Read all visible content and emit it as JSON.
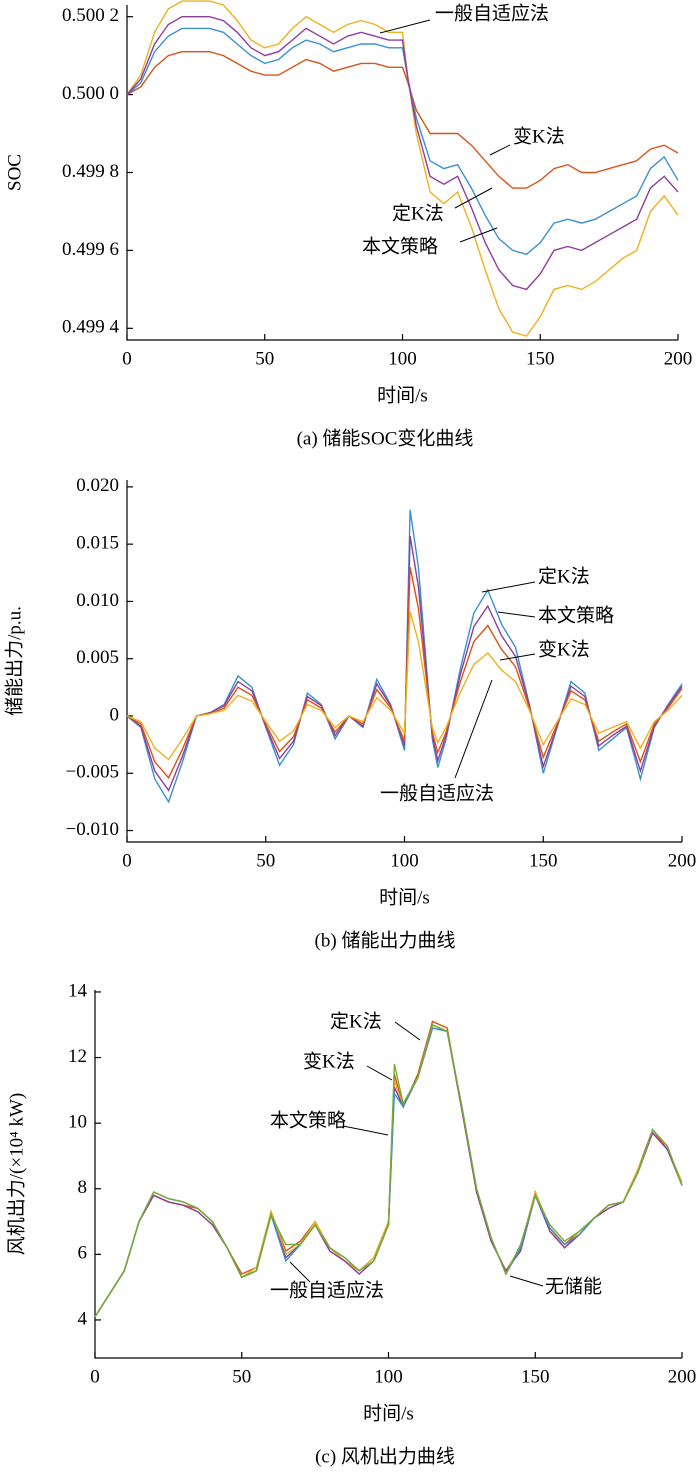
{
  "chart_data": [
    {
      "type": "line",
      "caption": "(a) 储能SOC变化曲线",
      "x_label": "时间/s",
      "y_label": "SOC",
      "x": [
        0,
        5,
        10,
        15,
        20,
        25,
        30,
        35,
        40,
        45,
        50,
        55,
        60,
        65,
        70,
        75,
        80,
        85,
        90,
        95,
        100,
        102,
        105,
        110,
        115,
        120,
        125,
        130,
        135,
        140,
        145,
        150,
        155,
        160,
        165,
        170,
        175,
        180,
        185,
        190,
        195,
        200
      ],
      "xlim": [
        0,
        200
      ],
      "xticks": [
        0,
        50,
        100,
        150,
        200
      ],
      "ylim": [
        0.49937,
        0.50023
      ],
      "yticks": [
        {
          "value": 0.4994,
          "label": "0.499 4"
        },
        {
          "value": 0.4996,
          "label": "0.499 6"
        },
        {
          "value": 0.4998,
          "label": "0.499 8"
        },
        {
          "value": 0.5,
          "label": "0.500 0"
        },
        {
          "value": 0.5002,
          "label": "0.500 2"
        }
      ],
      "series": [
        {
          "name": "一般自适应法",
          "color": "#EDB120",
          "values": [
            0.5,
            0.50005,
            0.50016,
            0.50022,
            0.50024,
            0.50024,
            0.50024,
            0.50023,
            0.50019,
            0.50014,
            0.50012,
            0.50013,
            0.50017,
            0.5002,
            0.50018,
            0.50016,
            0.50018,
            0.50019,
            0.50018,
            0.50016,
            0.50016,
            0.50004,
            0.4999,
            0.49975,
            0.49972,
            0.49975,
            0.49966,
            0.49955,
            0.49945,
            0.49939,
            0.49938,
            0.49943,
            0.4995,
            0.49951,
            0.4995,
            0.49952,
            0.49955,
            0.49958,
            0.4996,
            0.4997,
            0.49974,
            0.49969
          ]
        },
        {
          "name": "变K法",
          "color": "#D95319",
          "values": [
            0.5,
            0.50002,
            0.50007,
            0.5001,
            0.50011,
            0.50011,
            0.50011,
            0.5001,
            0.50008,
            0.50006,
            0.50005,
            0.50005,
            0.50007,
            0.50009,
            0.50008,
            0.50006,
            0.50007,
            0.50008,
            0.50008,
            0.50007,
            0.50007,
            0.50003,
            0.49996,
            0.4999,
            0.4999,
            0.4999,
            0.49987,
            0.49983,
            0.49979,
            0.49976,
            0.49976,
            0.49978,
            0.49981,
            0.49982,
            0.4998,
            0.4998,
            0.49981,
            0.49982,
            0.49983,
            0.49986,
            0.49987,
            0.49985
          ]
        },
        {
          "name": "定K法",
          "color": "#3B8FD0",
          "values": [
            0.5,
            0.50003,
            0.50011,
            0.50015,
            0.50017,
            0.50017,
            0.50017,
            0.50016,
            0.50013,
            0.5001,
            0.50008,
            0.50009,
            0.50012,
            0.50014,
            0.50013,
            0.50011,
            0.50012,
            0.50013,
            0.50013,
            0.50012,
            0.50012,
            0.50004,
            0.49994,
            0.49983,
            0.49981,
            0.49982,
            0.49976,
            0.49969,
            0.49963,
            0.4996,
            0.49959,
            0.49962,
            0.49967,
            0.49968,
            0.49967,
            0.49968,
            0.4997,
            0.49972,
            0.49974,
            0.49981,
            0.49984,
            0.49978
          ]
        },
        {
          "name": "本文策略",
          "color": "#8E3F9A",
          "values": [
            0.5,
            0.50004,
            0.50013,
            0.50018,
            0.5002,
            0.5002,
            0.5002,
            0.50019,
            0.50016,
            0.50012,
            0.5001,
            0.50011,
            0.50014,
            0.50017,
            0.50015,
            0.50013,
            0.50015,
            0.50016,
            0.50015,
            0.50014,
            0.50014,
            0.50004,
            0.49992,
            0.49979,
            0.49977,
            0.49979,
            0.49971,
            0.49962,
            0.49955,
            0.49951,
            0.4995,
            0.49954,
            0.4996,
            0.49961,
            0.4996,
            0.49962,
            0.49964,
            0.49966,
            0.49968,
            0.49976,
            0.49979,
            0.49975
          ]
        }
      ]
    },
    {
      "type": "line",
      "caption": "(b) 储能出力曲线",
      "x_label": "时间/s",
      "y_label": "储能出力/p.u.",
      "x": [
        0,
        5,
        10,
        15,
        20,
        25,
        30,
        35,
        40,
        45,
        50,
        55,
        60,
        65,
        70,
        75,
        80,
        85,
        90,
        95,
        100,
        102,
        105,
        110,
        112,
        115,
        120,
        125,
        130,
        135,
        140,
        145,
        150,
        155,
        160,
        165,
        170,
        175,
        180,
        185,
        190,
        195,
        200
      ],
      "xlim": [
        0,
        200
      ],
      "xticks": [
        0,
        50,
        100,
        150,
        200
      ],
      "ylim": [
        -0.011,
        0.0206
      ],
      "yticks": [
        {
          "value": -0.01,
          "label": "−0.010"
        },
        {
          "value": -0.005,
          "label": "−0.005"
        },
        0,
        {
          "value": 0.005,
          "label": "0.005"
        },
        {
          "value": 0.01,
          "label": "0.010"
        },
        {
          "value": 0.015,
          "label": "0.015"
        },
        {
          "value": 0.02,
          "label": "0.020"
        }
      ],
      "series": [
        {
          "name": "定K法",
          "color": "#3B8FD0",
          "values": [
            0,
            -0.001,
            -0.0055,
            -0.0075,
            -0.004,
            0,
            0.0003,
            0.001,
            0.0035,
            0.0025,
            -0.001,
            -0.0043,
            -0.0025,
            0.002,
            0.001,
            -0.002,
            0,
            -0.001,
            0.0032,
            0.001,
            -0.003,
            0.018,
            0.013,
            -0.002,
            -0.0045,
            -0.002,
            0.004,
            0.009,
            0.011,
            0.008,
            0.006,
            0.001,
            -0.005,
            -0.001,
            0.003,
            0.002,
            -0.003,
            -0.002,
            -0.001,
            -0.0055,
            -0.001,
            0.001,
            0.0028
          ]
        },
        {
          "name": "本文策略",
          "color": "#8E3F9A",
          "values": [
            0,
            -0.0009,
            -0.0048,
            -0.0065,
            -0.0035,
            0,
            0.0003,
            0.0009,
            0.003,
            0.0022,
            -0.0009,
            -0.0037,
            -0.0022,
            0.0017,
            0.0009,
            -0.0017,
            0,
            -0.0009,
            0.0028,
            0.0009,
            -0.0026,
            0.0157,
            0.0113,
            -0.0017,
            -0.0039,
            -0.0017,
            0.0035,
            0.0078,
            0.0096,
            0.007,
            0.0052,
            0.0009,
            -0.0044,
            -0.0009,
            0.0026,
            0.0017,
            -0.0026,
            -0.0017,
            -0.0009,
            -0.0048,
            -0.0009,
            0.0009,
            0.0026
          ]
        },
        {
          "name": "变K法",
          "color": "#D95319",
          "values": [
            0,
            -0.0007,
            -0.004,
            -0.0054,
            -0.0029,
            0,
            0.0002,
            0.0007,
            0.0025,
            0.0018,
            -0.0007,
            -0.0031,
            -0.0018,
            0.0014,
            0.0007,
            -0.0014,
            0,
            -0.0007,
            0.0023,
            0.0007,
            -0.0022,
            0.013,
            0.0094,
            -0.0014,
            -0.0032,
            -0.0014,
            0.0029,
            0.0065,
            0.0079,
            0.0058,
            0.0043,
            0.0007,
            -0.0036,
            -0.0007,
            0.0022,
            0.0014,
            -0.0022,
            -0.0014,
            -0.0007,
            -0.004,
            -0.0007,
            0.0007,
            0.0024
          ]
        },
        {
          "name": "一般自适应法",
          "color": "#EDB120",
          "values": [
            0,
            -0.0005,
            -0.0028,
            -0.0038,
            -0.002,
            0,
            0.0002,
            0.0005,
            0.0018,
            0.0013,
            -0.0005,
            -0.0022,
            -0.0013,
            0.001,
            0.0005,
            -0.001,
            0,
            -0.0005,
            0.0016,
            0.0005,
            -0.0015,
            0.0091,
            0.0065,
            -0.001,
            -0.0023,
            -0.001,
            0.002,
            0.0045,
            0.0055,
            0.004,
            0.003,
            0.0005,
            -0.0025,
            -0.0005,
            0.0015,
            0.001,
            -0.0015,
            -0.001,
            -0.0005,
            -0.0028,
            -0.0005,
            0.0005,
            0.0018
          ]
        }
      ]
    },
    {
      "type": "line",
      "caption": "(c) 风机出力曲线",
      "x_label": "时间/s",
      "y_label": "风机出力/(×10⁴ kW)",
      "x": [
        0,
        5,
        10,
        15,
        20,
        25,
        30,
        35,
        40,
        45,
        50,
        55,
        60,
        65,
        70,
        75,
        80,
        85,
        90,
        95,
        100,
        102,
        105,
        110,
        115,
        120,
        125,
        130,
        135,
        140,
        145,
        150,
        155,
        160,
        165,
        170,
        175,
        180,
        185,
        190,
        195,
        200
      ],
      "xlim": [
        0,
        200
      ],
      "xticks": [
        0,
        50,
        100,
        150,
        200
      ],
      "ylim": [
        2.84,
        14.06
      ],
      "yticks": [
        4,
        6,
        8,
        10,
        12,
        14
      ],
      "series": [
        {
          "name": "定K法",
          "color": "#D95319",
          "values": [
            4.1,
            4.8,
            5.5,
            7.0,
            7.8,
            7.6,
            7.5,
            7.4,
            7.0,
            6.2,
            5.4,
            5.6,
            7.3,
            6.1,
            6.4,
            7.0,
            6.2,
            5.8,
            5.5,
            5.9,
            7.0,
            11.5,
            10.5,
            11.5,
            13.1,
            12.9,
            10.4,
            7.9,
            6.4,
            5.5,
            6.2,
            7.9,
            6.8,
            6.3,
            6.7,
            7.1,
            7.5,
            7.6,
            8.6,
            9.8,
            9.2,
            8.2
          ]
        },
        {
          "name": "变K法",
          "color": "#EDB120",
          "values": [
            4.1,
            4.8,
            5.5,
            7.0,
            7.8,
            7.6,
            7.5,
            7.3,
            6.9,
            6.2,
            5.3,
            5.6,
            7.3,
            6.0,
            6.3,
            7.0,
            6.2,
            5.8,
            5.5,
            5.9,
            7.0,
            11.3,
            10.5,
            11.4,
            13.0,
            12.8,
            10.4,
            7.9,
            6.4,
            5.5,
            6.2,
            7.9,
            6.8,
            6.2,
            6.7,
            7.1,
            7.5,
            7.6,
            8.6,
            9.7,
            9.2,
            8.2
          ]
        },
        {
          "name": "本文策略",
          "color": "#8E3F9A",
          "values": [
            4.1,
            4.8,
            5.5,
            7.0,
            7.8,
            7.6,
            7.5,
            7.3,
            6.9,
            6.2,
            5.3,
            5.5,
            7.2,
            5.9,
            6.3,
            6.9,
            6.1,
            5.8,
            5.4,
            5.8,
            6.9,
            11.1,
            10.5,
            11.4,
            12.9,
            12.8,
            10.4,
            7.9,
            6.4,
            5.5,
            6.1,
            7.8,
            6.7,
            6.2,
            6.6,
            7.1,
            7.4,
            7.6,
            8.5,
            9.7,
            9.2,
            8.1
          ]
        },
        {
          "name": "一般自适应法",
          "color": "#3B8FD0",
          "values": [
            4.1,
            4.8,
            5.5,
            7.0,
            7.9,
            7.7,
            7.6,
            7.4,
            7.0,
            6.2,
            5.3,
            5.5,
            7.2,
            5.8,
            6.3,
            6.9,
            6.2,
            5.9,
            5.5,
            5.8,
            6.9,
            10.9,
            10.5,
            11.4,
            12.9,
            12.8,
            10.5,
            8.0,
            6.5,
            5.4,
            6.2,
            7.8,
            6.8,
            6.3,
            6.6,
            7.1,
            7.5,
            7.6,
            8.5,
            9.8,
            9.3,
            8.1
          ]
        },
        {
          "name": "无储能",
          "color": "#77AC30",
          "values": [
            4.1,
            4.8,
            5.5,
            7.0,
            7.9,
            7.7,
            7.6,
            7.4,
            7.0,
            6.2,
            5.3,
            5.5,
            7.2,
            6.3,
            6.3,
            6.9,
            6.2,
            5.9,
            5.5,
            5.8,
            6.9,
            11.8,
            10.6,
            11.4,
            13.0,
            12.8,
            10.5,
            8.0,
            6.5,
            5.4,
            6.3,
            7.8,
            6.9,
            6.4,
            6.7,
            7.1,
            7.5,
            7.6,
            8.5,
            9.8,
            9.3,
            8.1
          ]
        }
      ]
    }
  ]
}
